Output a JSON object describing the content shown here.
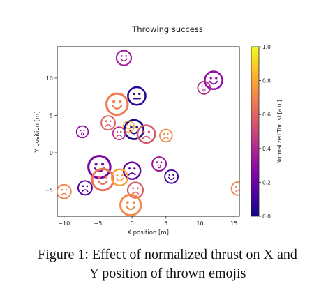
{
  "chart_data": {
    "type": "scatter",
    "title": "Throwing success",
    "xlabel": "X position [m]",
    "ylabel": "Y position [m]",
    "xlim": [
      -11,
      15.8
    ],
    "ylim": [
      -8.5,
      14.2
    ],
    "xticks": [
      -10,
      -5,
      0,
      5,
      10,
      15
    ],
    "xtick_labels": [
      "−10",
      "−5",
      "0",
      "5",
      "10",
      "15"
    ],
    "yticks": [
      -5,
      0,
      5,
      10
    ],
    "ytick_labels": [
      "−5",
      "0",
      "5",
      "10"
    ],
    "grid": false,
    "colorbar": {
      "label": "Normalized Thrust [a.u.]",
      "range": [
        0.0,
        1.0
      ],
      "ticks": [
        0.0,
        0.2,
        0.4,
        0.6,
        0.8,
        1.0
      ],
      "tick_labels": [
        "0.0",
        "0.2",
        "0.4",
        "0.6",
        "0.8",
        "1.0"
      ],
      "colormap": "plasma",
      "colors": [
        "#0d0887",
        "#5302a3",
        "#8b0aa5",
        "#b83289",
        "#db5c68",
        "#f48849",
        "#febd2a",
        "#f0f921"
      ]
    },
    "points": [
      {
        "x": -1.2,
        "y": 12.7,
        "thrust": 0.35,
        "size": 1.0,
        "face": "happy"
      },
      {
        "x": 0.7,
        "y": 7.6,
        "thrust": 0.05,
        "size": 1.2,
        "face": "flat"
      },
      {
        "x": 12.0,
        "y": 9.7,
        "thrust": 0.3,
        "size": 1.2,
        "face": "happy"
      },
      {
        "x": 10.6,
        "y": 8.7,
        "thrust": 0.4,
        "size": 0.85,
        "face": "surprised"
      },
      {
        "x": -2.2,
        "y": 6.5,
        "thrust": 0.68,
        "size": 1.45,
        "face": "happy"
      },
      {
        "x": -3.5,
        "y": 4.0,
        "thrust": 0.6,
        "size": 0.95,
        "face": "sad"
      },
      {
        "x": 0.3,
        "y": 3.1,
        "thrust": 0.02,
        "size": 1.3,
        "face": "happy"
      },
      {
        "x": 2.1,
        "y": 2.5,
        "thrust": 0.55,
        "size": 1.2,
        "face": "sad"
      },
      {
        "x": -0.5,
        "y": 3.5,
        "thrust": 0.8,
        "size": 0.75,
        "face": "happy"
      },
      {
        "x": -1.9,
        "y": 2.6,
        "thrust": 0.42,
        "size": 0.85,
        "face": "sad"
      },
      {
        "x": -7.3,
        "y": 2.8,
        "thrust": 0.3,
        "size": 0.8,
        "face": "surprised"
      },
      {
        "x": 5.0,
        "y": 2.3,
        "thrust": 0.72,
        "size": 0.85,
        "face": "sad"
      },
      {
        "x": -4.8,
        "y": -1.9,
        "thrust": 0.25,
        "size": 1.5,
        "face": "happy"
      },
      {
        "x": 0.0,
        "y": -2.4,
        "thrust": 0.2,
        "size": 1.15,
        "face": "sad"
      },
      {
        "x": 4.0,
        "y": -1.5,
        "thrust": 0.33,
        "size": 0.95,
        "face": "surprised"
      },
      {
        "x": 5.8,
        "y": -3.2,
        "thrust": 0.1,
        "size": 0.9,
        "face": "happy"
      },
      {
        "x": -4.3,
        "y": -3.6,
        "thrust": 0.65,
        "size": 1.45,
        "face": "happy"
      },
      {
        "x": -1.8,
        "y": -3.3,
        "thrust": 0.78,
        "size": 1.1,
        "face": "happy"
      },
      {
        "x": -6.9,
        "y": -4.7,
        "thrust": 0.15,
        "size": 0.95,
        "face": "sad"
      },
      {
        "x": 0.5,
        "y": -5.0,
        "thrust": 0.58,
        "size": 1.05,
        "face": "sad"
      },
      {
        "x": -10.0,
        "y": -5.2,
        "thrust": 0.7,
        "size": 0.95,
        "face": "sad"
      },
      {
        "x": -0.2,
        "y": -7.0,
        "thrust": 0.72,
        "size": 1.4,
        "face": "happy"
      },
      {
        "x": 15.6,
        "y": -4.8,
        "thrust": 0.7,
        "size": 0.9,
        "face": "sad"
      }
    ]
  },
  "caption": {
    "line1": "Figure 1:  Effect of normalized thrust on X and",
    "line2": "Y position of thrown emojis"
  }
}
